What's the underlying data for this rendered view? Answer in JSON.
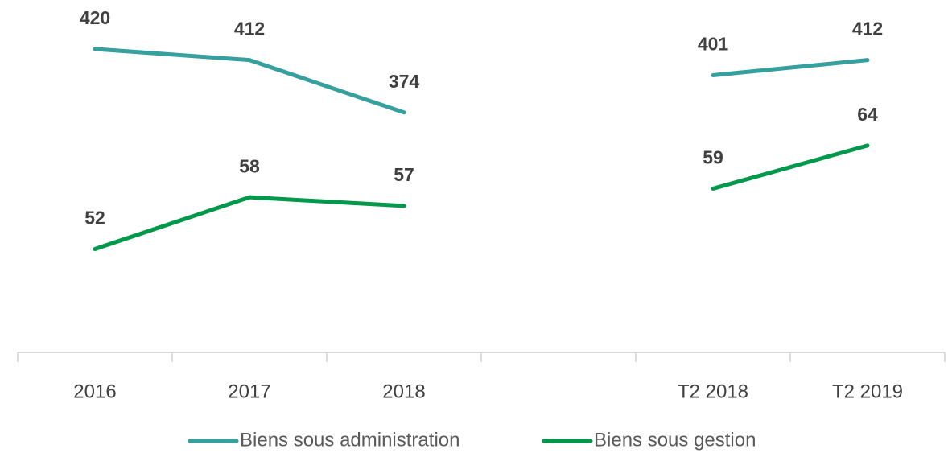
{
  "chart_data": {
    "type": "line",
    "categories": [
      "2016",
      "2017",
      "2018",
      null,
      "T2 2018",
      "T2 2019"
    ],
    "series": [
      {
        "name": "Biens sous administration",
        "color": "#35a09d",
        "values": [
          420,
          412,
          374,
          null,
          401,
          412
        ]
      },
      {
        "name": "Biens sous gestion",
        "color": "#00994c",
        "axis": "y2",
        "values": [
          52,
          58,
          57,
          null,
          59,
          64
        ]
      }
    ],
    "ylim": [
      200,
      450
    ],
    "y2lim": [
      40,
      80
    ],
    "grid": false,
    "legend": "bottom"
  }
}
